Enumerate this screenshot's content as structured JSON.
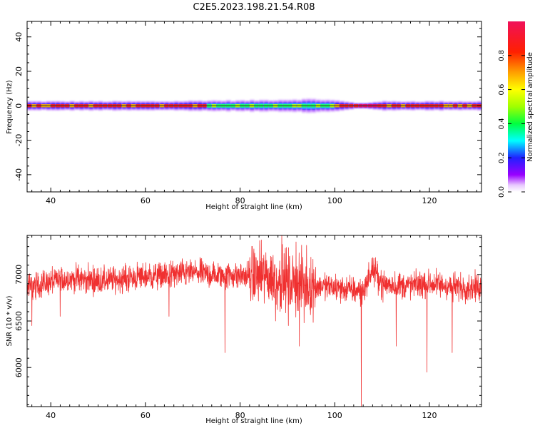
{
  "title": "C2E5.2023.198.21.54.R08",
  "colors": {
    "snr_line": "#f03030",
    "axis": "#000000"
  },
  "chart_data": [
    {
      "type": "heatmap",
      "xlabel": "Height of straight line (km)",
      "ylabel": "Frequency (Hz)",
      "xlim": [
        35,
        131
      ],
      "ylim": [
        -50,
        49
      ],
      "x_ticks": [
        40,
        60,
        80,
        100,
        120
      ],
      "y_ticks": [
        40,
        20,
        0,
        -20,
        -40
      ],
      "colorbar": {
        "label": "Normalized spectral amplitude",
        "range": [
          0,
          1
        ],
        "ticks": [
          0.0,
          0.2,
          0.4,
          0.6,
          0.8
        ],
        "colormap": [
          "#ffffff",
          "#e8c8ff",
          "#9900ff",
          "#2020ff",
          "#00ffff",
          "#00ff40",
          "#a0ff00",
          "#ffff00",
          "#ffa000",
          "#ff2000",
          "#f0105a"
        ]
      },
      "band": {
        "center_hz": 0,
        "core_amplitude": 0.9,
        "profile_km": [
          35,
          45,
          55,
          65,
          72,
          80,
          88,
          95,
          100,
          104,
          106,
          109,
          112,
          120,
          131
        ],
        "halfwidth_hz": [
          3,
          3,
          3,
          3,
          3.5,
          3.5,
          4,
          4.5,
          3.5,
          2,
          2,
          3,
          3,
          3,
          3
        ]
      }
    },
    {
      "type": "line",
      "xlabel": "Height of straight line (km)",
      "ylabel": "SNR (10 * v/v)",
      "xlim": [
        35,
        131
      ],
      "ylim": [
        5580,
        7420
      ],
      "x_ticks": [
        40,
        60,
        80,
        100,
        120
      ],
      "y_ticks": [
        6000,
        6500,
        7000
      ],
      "series": [
        {
          "baseline_km": [
            35,
            40,
            45,
            50,
            55,
            60,
            65,
            70,
            75,
            80,
            85,
            90,
            95,
            100,
            104,
            106,
            108,
            110,
            115,
            120,
            125,
            131
          ],
          "baseline_snr": [
            6860,
            6920,
            6960,
            6930,
            6950,
            6980,
            6990,
            7020,
            6990,
            6990,
            6980,
            6930,
            6880,
            6860,
            6830,
            6820,
            7060,
            6900,
            6880,
            6900,
            6870,
            6860
          ],
          "spread_snr": 110,
          "spikes": [
            {
              "km": 76.8,
              "snr": 6160
            },
            {
              "km": 87.5,
              "snr": 6500
            },
            {
              "km": 88.8,
              "snr": 7420
            },
            {
              "km": 90.2,
              "snr": 6450
            },
            {
              "km": 91.8,
              "snr": 7350
            },
            {
              "km": 92.5,
              "snr": 6230
            },
            {
              "km": 93.5,
              "snr": 6480
            },
            {
              "km": 105.6,
              "snr": 5580
            },
            {
              "km": 110.2,
              "snr": 6700
            },
            {
              "km": 113.0,
              "snr": 6230
            },
            {
              "km": 119.5,
              "snr": 5950
            },
            {
              "km": 124.8,
              "snr": 6160
            },
            {
              "km": 65.0,
              "snr": 6550
            },
            {
              "km": 42.0,
              "snr": 6550
            },
            {
              "km": 36.0,
              "snr": 6450
            }
          ]
        }
      ]
    }
  ]
}
